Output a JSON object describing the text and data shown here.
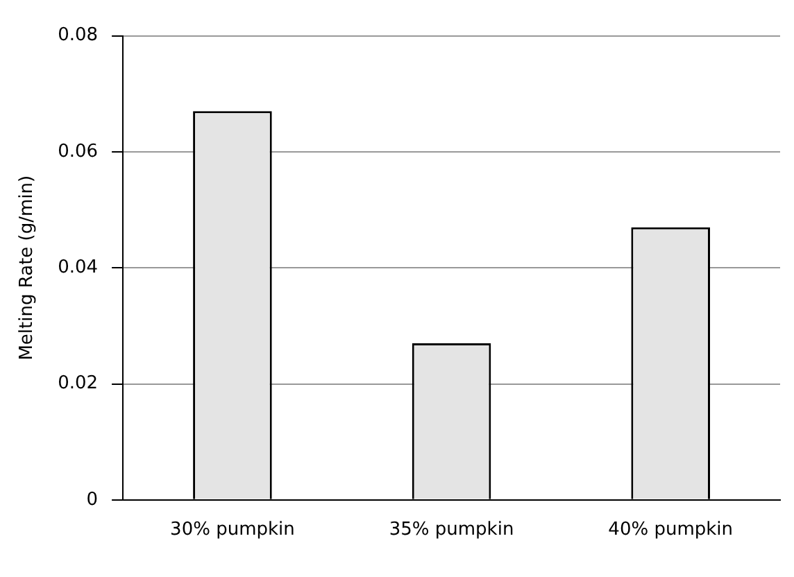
{
  "chart_data": {
    "type": "bar",
    "ylabel": "Melting Rate (g/min)",
    "categories": [
      "30% pumpkin",
      "35% pumpkin",
      "40% pumpkin"
    ],
    "values": [
      0.067,
      0.027,
      0.047
    ],
    "color": "#e4e4e4",
    "ylim": [
      0,
      0.08
    ],
    "yticks": [
      0,
      0.02,
      0.04,
      0.06,
      0.08
    ],
    "grid": "y"
  }
}
